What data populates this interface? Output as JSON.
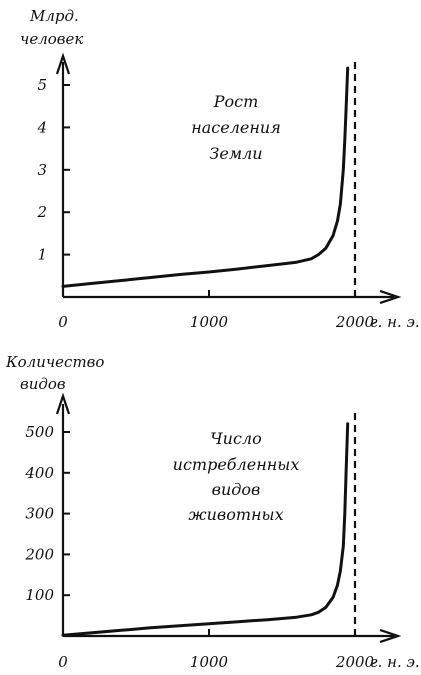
{
  "chart_data": [
    {
      "type": "line",
      "ylabel": [
        "Млрд.",
        "человек"
      ],
      "annotation": [
        "Рост",
        "населения",
        "Земли"
      ],
      "x_ticks": [
        "0",
        "1000",
        "2000"
      ],
      "x_unit": "г. н. э.",
      "y_ticks": [
        "1",
        "2",
        "3",
        "4",
        "5"
      ],
      "xlim": [
        0,
        2050
      ],
      "ylim": [
        0,
        5.6
      ],
      "x_limit_line": 2000,
      "series": [
        {
          "x": [
            0,
            200,
            400,
            600,
            800,
            1000,
            1200,
            1400,
            1600,
            1700,
            1750,
            1800,
            1850,
            1880,
            1900,
            1920,
            1930,
            1940,
            1950
          ],
          "y": [
            0.25,
            0.32,
            0.39,
            0.46,
            0.53,
            0.59,
            0.66,
            0.74,
            0.82,
            0.9,
            1.0,
            1.15,
            1.45,
            1.8,
            2.2,
            3.0,
            3.7,
            4.5,
            5.4
          ]
        }
      ]
    },
    {
      "type": "line",
      "ylabel": [
        "Количество",
        "видов"
      ],
      "annotation": [
        "Число",
        "истребленных",
        "видов",
        "животных"
      ],
      "x_ticks": [
        "0",
        "1000",
        "2000"
      ],
      "x_unit": "г. н. э.",
      "y_ticks": [
        "100",
        "200",
        "300",
        "400",
        "500"
      ],
      "xlim": [
        0,
        2050
      ],
      "ylim": [
        0,
        560
      ],
      "x_limit_line": 2000,
      "series": [
        {
          "x": [
            0,
            200,
            400,
            600,
            800,
            1000,
            1200,
            1400,
            1600,
            1700,
            1750,
            1800,
            1850,
            1880,
            1900,
            1920,
            1930,
            1940,
            1950
          ],
          "y": [
            2,
            8,
            14,
            20,
            25,
            30,
            35,
            40,
            46,
            52,
            58,
            70,
            95,
            125,
            160,
            220,
            300,
            410,
            520
          ]
        }
      ]
    }
  ]
}
